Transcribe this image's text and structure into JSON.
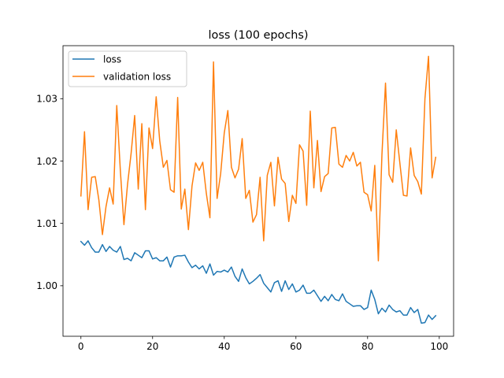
{
  "chart_data": {
    "type": "line",
    "title": "loss (100 epochs)",
    "xlabel": "",
    "ylabel": "",
    "xlim": [
      -5,
      104
    ],
    "ylim": [
      0.9919,
      1.0385
    ],
    "xticks": [
      0,
      20,
      40,
      60,
      80,
      100
    ],
    "xtick_labels": [
      "0",
      "20",
      "40",
      "60",
      "80",
      "100"
    ],
    "yticks": [
      1.0,
      1.01,
      1.02,
      1.03
    ],
    "ytick_labels": [
      "1.00",
      "1.01",
      "1.02",
      "1.03"
    ],
    "grid": false,
    "legend_placement": "upper-left",
    "x": [
      0,
      1,
      2,
      3,
      4,
      5,
      6,
      7,
      8,
      9,
      10,
      11,
      12,
      13,
      14,
      15,
      16,
      17,
      18,
      19,
      20,
      21,
      22,
      23,
      24,
      25,
      26,
      27,
      28,
      29,
      30,
      31,
      32,
      33,
      34,
      35,
      36,
      37,
      38,
      39,
      40,
      41,
      42,
      43,
      44,
      45,
      46,
      47,
      48,
      49,
      50,
      51,
      52,
      53,
      54,
      55,
      56,
      57,
      58,
      59,
      60,
      61,
      62,
      63,
      64,
      65,
      66,
      67,
      68,
      69,
      70,
      71,
      72,
      73,
      74,
      75,
      76,
      77,
      78,
      79,
      80,
      81,
      82,
      83,
      84,
      85,
      86,
      87,
      88,
      89,
      90,
      91,
      92,
      93,
      94,
      95,
      96,
      97,
      98,
      99
    ],
    "series": [
      {
        "name": "loss",
        "color": "#1f77b4",
        "values": [
          1.0071,
          1.0065,
          1.0072,
          1.0061,
          1.0054,
          1.0054,
          1.0066,
          1.0055,
          1.0063,
          1.0057,
          1.0054,
          1.0063,
          1.0042,
          1.0044,
          1.004,
          1.0053,
          1.0049,
          1.0045,
          1.0056,
          1.0056,
          1.0043,
          1.0045,
          1.004,
          1.004,
          1.0046,
          1.003,
          1.0046,
          1.0048,
          1.0048,
          1.0049,
          1.0038,
          1.0029,
          1.0033,
          1.0027,
          1.0032,
          1.002,
          1.0035,
          1.0017,
          1.0023,
          1.0022,
          1.0025,
          1.0022,
          1.003,
          1.0015,
          1.0007,
          1.0027,
          1.0013,
          1.0003,
          1.0007,
          1.0012,
          1.0018,
          1.0004,
          0.9997,
          0.999,
          1.0005,
          1.0008,
          0.9991,
          1.0008,
          0.9994,
          1.0003,
          0.999,
          0.9993,
          1.0001,
          0.9988,
          0.9988,
          0.9993,
          0.9984,
          0.9975,
          0.9983,
          0.9976,
          0.9986,
          0.9978,
          0.9976,
          0.9987,
          0.9975,
          0.9971,
          0.9967,
          0.9968,
          0.9968,
          0.9962,
          0.9965,
          0.9993,
          0.9978,
          0.9955,
          0.9964,
          0.9958,
          0.9969,
          0.9962,
          0.9958,
          0.996,
          0.9953,
          0.9953,
          0.9965,
          0.9957,
          0.9962,
          0.994,
          0.9941,
          0.9953,
          0.9946,
          0.9952
        ]
      },
      {
        "name": "validation loss",
        "color": "#ff7f0e",
        "values": [
          1.0144,
          1.0247,
          1.0122,
          1.0174,
          1.0175,
          1.0138,
          1.0082,
          1.0127,
          1.0157,
          1.0131,
          1.0289,
          1.0185,
          1.0098,
          1.0162,
          1.0212,
          1.0273,
          1.0155,
          1.026,
          1.0122,
          1.0253,
          1.022,
          1.0303,
          1.0232,
          1.019,
          1.0201,
          1.0154,
          1.015,
          1.0302,
          1.0123,
          1.0155,
          1.009,
          1.016,
          1.0197,
          1.0185,
          1.0198,
          1.0148,
          1.0109,
          1.0359,
          1.014,
          1.018,
          1.0245,
          1.0281,
          1.019,
          1.0173,
          1.0187,
          1.0236,
          1.014,
          1.0153,
          1.0102,
          1.0114,
          1.0174,
          1.0072,
          1.0177,
          1.0198,
          1.0128,
          1.0206,
          1.0171,
          1.0164,
          1.0103,
          1.0145,
          1.0132,
          1.0226,
          1.0216,
          1.0129,
          1.028,
          1.0157,
          1.0233,
          1.0151,
          1.0175,
          1.018,
          1.0253,
          1.0254,
          1.0195,
          1.019,
          1.0209,
          1.02,
          1.0214,
          1.0192,
          1.0198,
          1.015,
          1.0146,
          1.012,
          1.0193,
          1.004,
          1.021,
          1.0325,
          1.0178,
          1.0166,
          1.025,
          1.0197,
          1.0145,
          1.0144,
          1.0221,
          1.0177,
          1.0167,
          1.0147,
          1.03,
          1.0368,
          1.0173,
          1.0206
        ]
      }
    ]
  }
}
